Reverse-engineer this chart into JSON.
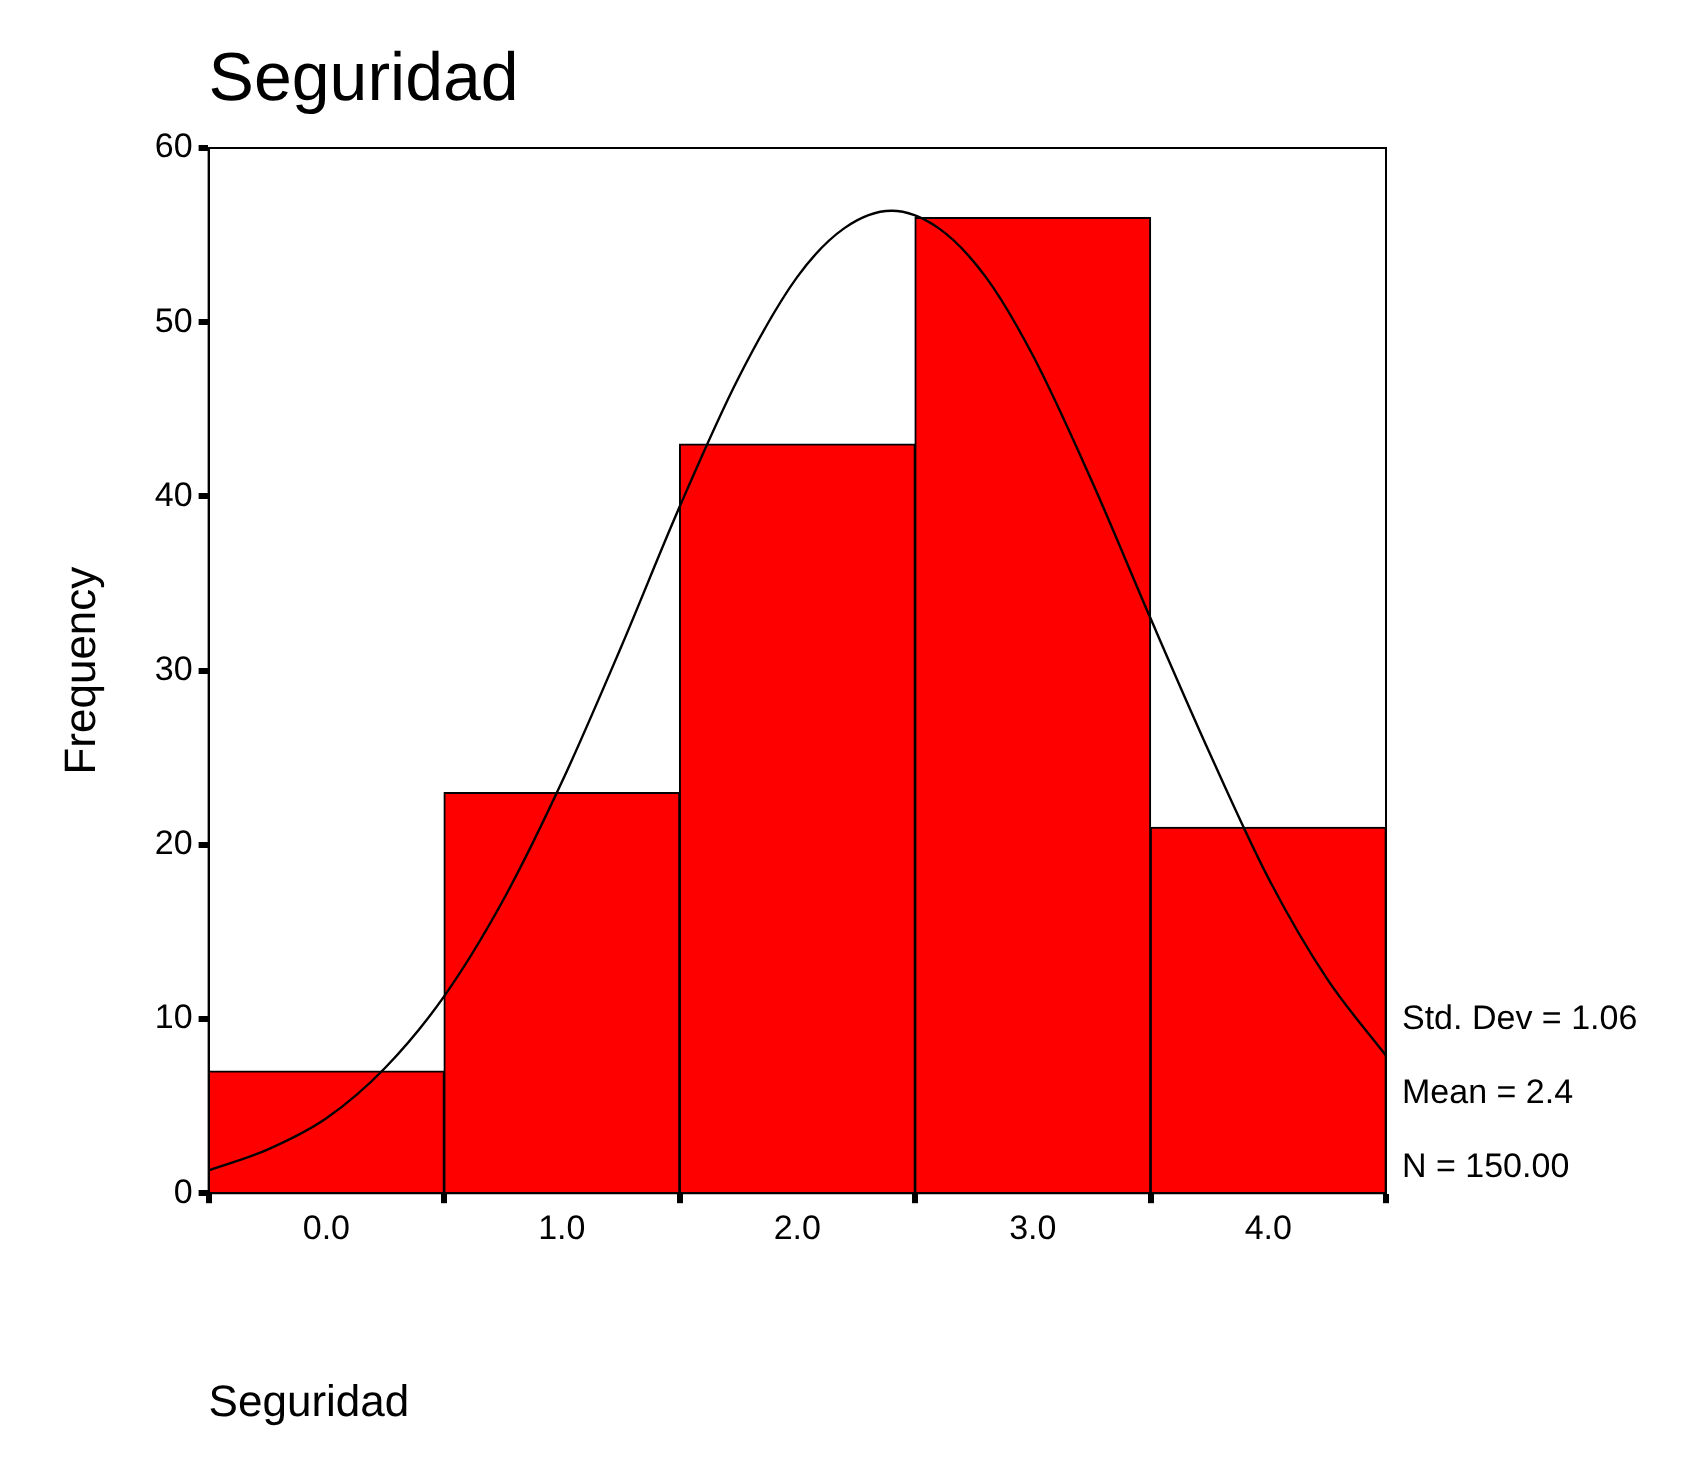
{
  "chart_data": {
    "type": "histogram",
    "title": "Seguridad",
    "xlabel": "Seguridad",
    "ylabel": "Frequency",
    "bins": [
      -0.5,
      0.5,
      1.5,
      2.5,
      3.5,
      4.5
    ],
    "values": [
      7,
      23,
      43,
      56,
      21
    ],
    "color": "#ff0000",
    "series": [
      {
        "type": "line",
        "color": "#000000",
        "x": [
          -0.5,
          -0.25,
          0,
          0.25,
          0.5,
          0.75,
          1,
          1.25,
          1.5,
          1.75,
          2,
          2.2,
          2.4,
          2.6,
          2.8,
          3,
          3.25,
          3.5,
          3.75,
          4,
          4.25,
          4.5
        ],
        "values": [
          1.3,
          2.5,
          4.3,
          7.2,
          11.3,
          16.8,
          23.6,
          31.3,
          39.4,
          46.8,
          52.6,
          55.4,
          56.4,
          55.4,
          52.6,
          48.1,
          40.9,
          33.0,
          25.3,
          18.1,
          12.3,
          7.9
        ]
      }
    ],
    "xlim": [
      -0.5,
      4.5
    ],
    "xticks": [
      {
        "value": 0,
        "label": "0.0"
      },
      {
        "value": 1,
        "label": "1.0"
      },
      {
        "value": 2,
        "label": "2.0"
      },
      {
        "value": 3,
        "label": "3.0"
      },
      {
        "value": 4,
        "label": "4.0"
      }
    ],
    "ylim": [
      0,
      60
    ],
    "yticks": [
      0,
      10,
      20,
      30,
      40,
      50,
      60
    ],
    "grid": false,
    "legend": false,
    "marker": "none",
    "line_style": "solid",
    "annotations": [
      "Std. Dev = 1.06",
      "Mean = 2.4",
      "N = 150.00"
    ]
  }
}
